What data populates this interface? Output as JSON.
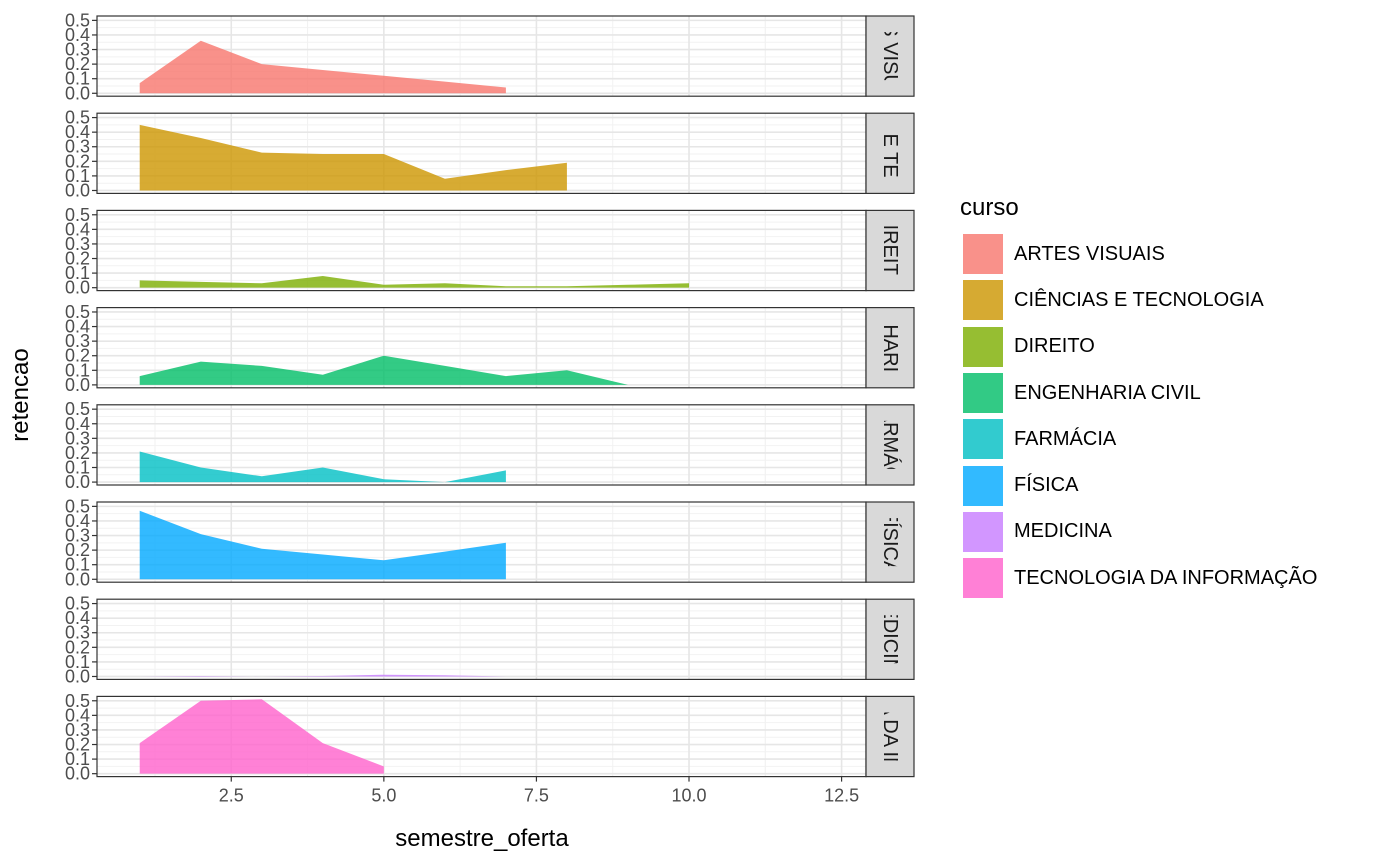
{
  "chart_data": {
    "type": "area",
    "xlabel": "semestre_oferta",
    "ylabel": "retencao",
    "xlim": [
      0.3,
      12.9
    ],
    "ylim": [
      -0.02,
      0.53
    ],
    "x_ticks": [
      "2.5",
      "5.0",
      "7.5",
      "10.0",
      "12.5"
    ],
    "x_tick_values": [
      2.5,
      5.0,
      7.5,
      10.0,
      12.5
    ],
    "y_ticks": [
      "0.0",
      "0.1",
      "0.2",
      "0.3",
      "0.4",
      "0.5"
    ],
    "y_tick_values": [
      0.0,
      0.1,
      0.2,
      0.3,
      0.4,
      0.5
    ],
    "grid": true,
    "legend": {
      "title": "curso",
      "placement": "right"
    },
    "series": [
      {
        "name": "ARTES VISUAIS",
        "strip": "ES VISUA",
        "color": "#F8766D",
        "x": [
          1,
          2,
          3,
          4,
          5,
          6,
          7
        ],
        "y": [
          0.07,
          0.36,
          0.2,
          0.16,
          0.12,
          0.08,
          0.04
        ]
      },
      {
        "name": "CIÊNCIAS E TECNOLOGIA",
        "strip": "S E TEC",
        "color": "#CD9600",
        "x": [
          1,
          2,
          3,
          4,
          5,
          6,
          7,
          8
        ],
        "y": [
          0.45,
          0.36,
          0.26,
          0.25,
          0.25,
          0.08,
          0.14,
          0.19
        ]
      },
      {
        "name": "DIREITO",
        "strip": "DIREITO",
        "color": "#7CAE00",
        "x": [
          1,
          2,
          3,
          4,
          5,
          6,
          7,
          8,
          9,
          10
        ],
        "y": [
          0.05,
          0.04,
          0.03,
          0.08,
          0.02,
          0.03,
          0.01,
          0.01,
          0.02,
          0.03
        ]
      },
      {
        "name": "ENGENHARIA CIVIL",
        "strip": "NHARIA",
        "color": "#00BE67",
        "x": [
          1,
          2,
          3,
          4,
          5,
          6,
          7,
          8,
          9
        ],
        "y": [
          0.06,
          0.16,
          0.13,
          0.07,
          0.2,
          0.13,
          0.06,
          0.1,
          0.0
        ]
      },
      {
        "name": "FARMÁCIA",
        "strip": "ARMÁC",
        "color": "#00BFC4",
        "x": [
          1,
          2,
          3,
          4,
          5,
          6,
          7
        ],
        "y": [
          0.21,
          0.1,
          0.04,
          0.1,
          0.02,
          0.0,
          0.08
        ]
      },
      {
        "name": "FÍSICA",
        "strip": "FÍSICA",
        "color": "#00A9FF",
        "x": [
          1,
          2,
          3,
          4,
          5,
          6,
          7
        ],
        "y": [
          0.47,
          0.31,
          0.21,
          0.17,
          0.13,
          0.19,
          0.25
        ]
      },
      {
        "name": "MEDICINA",
        "strip": "EDICIN",
        "color": "#C77CFF",
        "x": [
          1,
          2,
          3,
          4,
          5,
          6,
          7
        ],
        "y": [
          0.0,
          0.003,
          0.0,
          0.003,
          0.012,
          0.008,
          0.0
        ]
      },
      {
        "name": "TECNOLOGIA DA INFORMAÇÃO",
        "strip": "A DA IN",
        "color": "#FF61CC",
        "x": [
          1,
          2,
          3,
          4,
          5
        ],
        "y": [
          0.21,
          0.5,
          0.51,
          0.21,
          0.05
        ]
      }
    ]
  }
}
